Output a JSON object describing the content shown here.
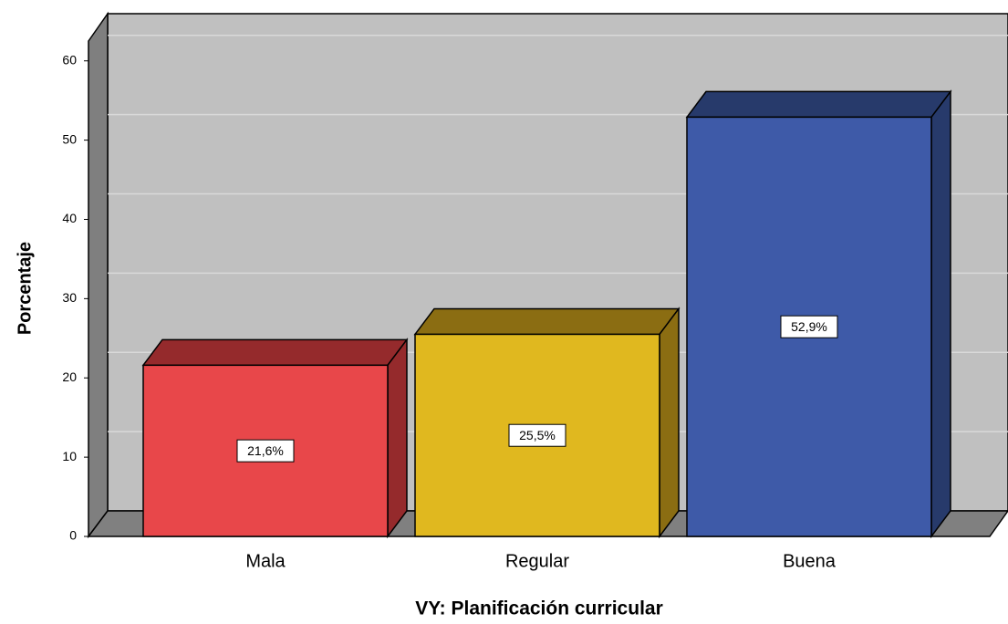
{
  "chart_data": {
    "type": "bar3d",
    "categories": [
      "Mala",
      "Regular",
      "Buena"
    ],
    "values": [
      21.6,
      25.5,
      52.9
    ],
    "value_labels": [
      "21,6%",
      "25,5%",
      "52,9%"
    ],
    "colors": [
      "#e8474a",
      "#e0b81f",
      "#3e5aa8"
    ],
    "shade_colors": [
      "#952a2c",
      "#8b6d12",
      "#273a6b"
    ],
    "ylabel": "Porcentaje",
    "xlabel": "VY: Planificación curricular",
    "ylim": [
      0,
      62.5
    ],
    "yticks": [
      0,
      10,
      20,
      30,
      40,
      50,
      60
    ],
    "grid": true
  }
}
